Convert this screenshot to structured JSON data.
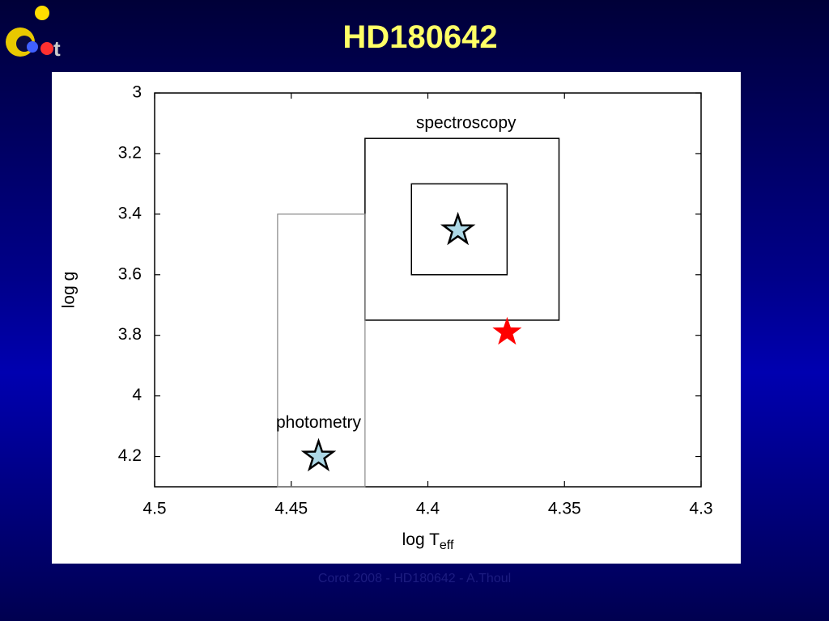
{
  "slide": {
    "title": "HD180642",
    "footer": "Corot 2008 - HD180642 - A.Thoul"
  },
  "chart_data": {
    "type": "scatter",
    "xlabel": "log T",
    "xlabel_sub": "eff",
    "ylabel": "log g",
    "xlim": [
      4.5,
      4.3
    ],
    "ylim": [
      4.3,
      3
    ],
    "xticks": [
      4.5,
      4.45,
      4.4,
      4.35,
      4.3
    ],
    "yticks": [
      3,
      3.2,
      3.4,
      3.6,
      3.8,
      4,
      4.2
    ],
    "regions": [
      {
        "label": "spectroscopy",
        "x": [
          4.423,
          4.352
        ],
        "y": [
          3.15,
          3.75
        ]
      },
      {
        "x": [
          4.406,
          4.371
        ],
        "y": [
          3.3,
          3.6
        ]
      },
      {
        "x": [
          4.455,
          4.423
        ],
        "y": [
          3.4,
          4.3
        ]
      }
    ],
    "points": [
      {
        "x": 4.389,
        "y": 3.453,
        "color": "#add8e6"
      },
      {
        "label": "photometry",
        "x": 4.44,
        "y": 4.2,
        "color": "#add8e6"
      },
      {
        "x": 4.371,
        "y": 3.79,
        "color": "#ff0000"
      }
    ]
  }
}
